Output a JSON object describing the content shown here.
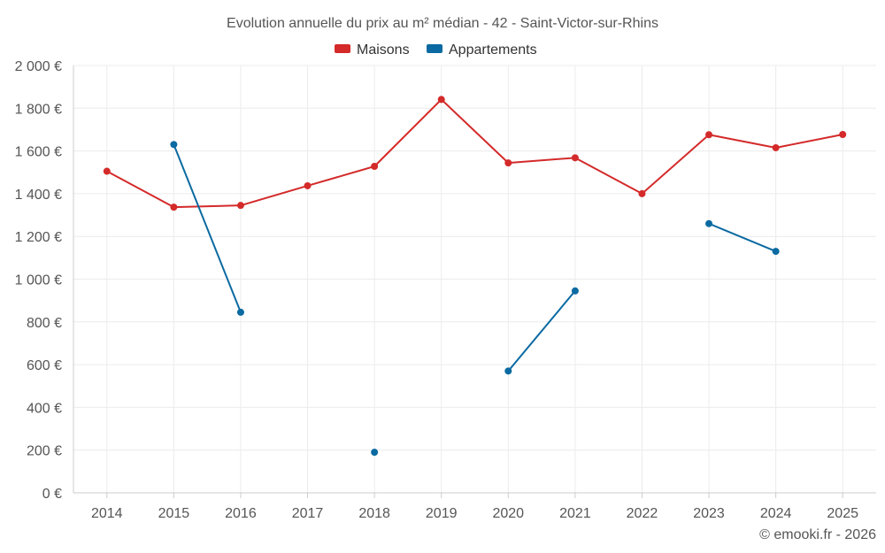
{
  "chart_data": {
    "type": "line",
    "title": "Evolution annuelle du prix au m² médian - 42 - Saint-Victor-sur-Rhins",
    "categories": [
      "2014",
      "2015",
      "2016",
      "2017",
      "2018",
      "2019",
      "2020",
      "2021",
      "2022",
      "2023",
      "2024",
      "2025"
    ],
    "y_ticks": [
      "0 €",
      "200 €",
      "400 €",
      "600 €",
      "800 €",
      "1 000 €",
      "1 200 €",
      "1 400 €",
      "1 600 €",
      "1 800 €",
      "2 000 €"
    ],
    "ylim": [
      0,
      2000
    ],
    "grid": true,
    "legend_position": "top-center",
    "series": [
      {
        "name": "Maisons",
        "color": "#d42a2a",
        "values": [
          1505,
          1337,
          1345,
          1437,
          1528,
          1841,
          1544,
          1568,
          1400,
          1676,
          1615,
          1677
        ]
      },
      {
        "name": "Appartements",
        "color": "#0a6aa1",
        "values": [
          null,
          1630,
          845,
          null,
          190,
          null,
          570,
          945,
          null,
          1260,
          1130,
          null
        ]
      }
    ]
  },
  "credit": "© emooki.fr - 2026"
}
